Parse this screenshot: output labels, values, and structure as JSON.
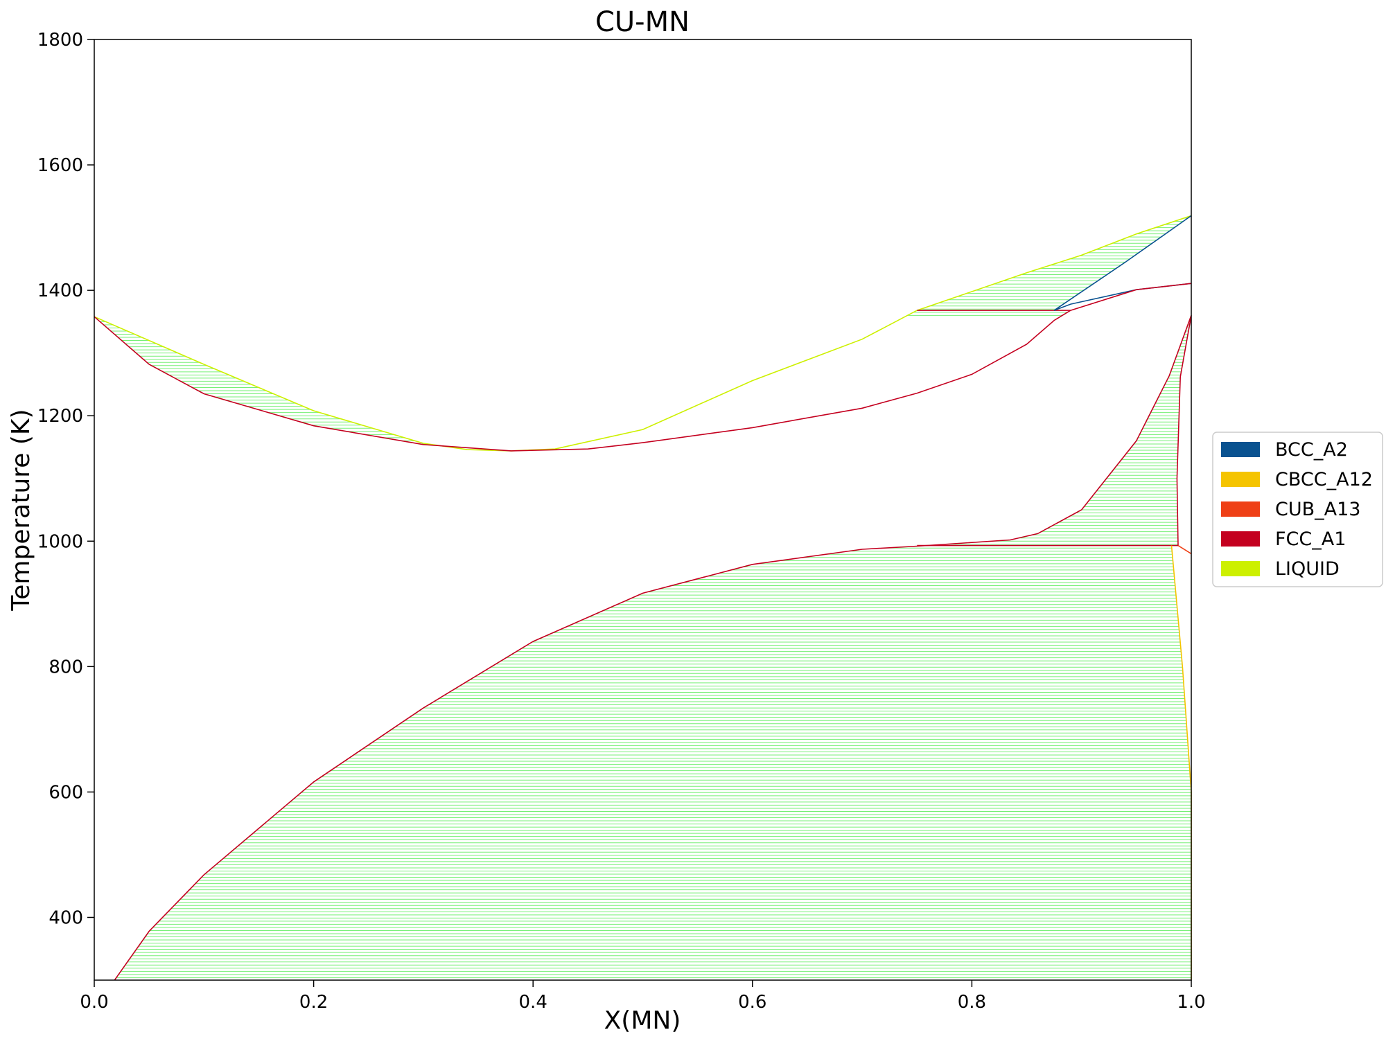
{
  "chart_data": {
    "type": "line",
    "title": "CU-MN",
    "xlabel": "X(MN)",
    "ylabel": "Temperature (K)",
    "xlim": [
      0,
      1
    ],
    "ylim": [
      300,
      1800
    ],
    "xticks": [
      "0.0",
      "0.2",
      "0.4",
      "0.6",
      "0.8",
      "1.0"
    ],
    "yticks": [
      "400",
      "600",
      "800",
      "1000",
      "1200",
      "1400",
      "1600",
      "1800"
    ],
    "grid": false,
    "legend_position": "right",
    "legend": [
      {
        "name": "BCC_A2",
        "color": "#0a5290"
      },
      {
        "name": "CBCC_A12",
        "color": "#f5c400"
      },
      {
        "name": "CUB_A13",
        "color": "#ef4016"
      },
      {
        "name": "FCC_A1",
        "color": "#c4001f"
      },
      {
        "name": "LIQUID",
        "color": "#cdf000"
      }
    ],
    "tieline_color": "#66ee66",
    "series": [
      {
        "name": "LIQUID",
        "color": "#cdf000",
        "points": [
          [
            0.0,
            1358
          ],
          [
            0.1,
            1282
          ],
          [
            0.2,
            1208
          ],
          [
            0.3,
            1156
          ],
          [
            0.34,
            1146
          ],
          [
            0.38,
            1144
          ],
          [
            0.42,
            1147
          ],
          [
            0.5,
            1178
          ],
          [
            0.6,
            1256
          ],
          [
            0.7,
            1322
          ],
          [
            0.75,
            1368
          ],
          [
            0.85,
            1428
          ],
          [
            0.9,
            1456
          ],
          [
            0.95,
            1490
          ],
          [
            1.0,
            1519
          ]
        ]
      },
      {
        "name": "FCC_A1",
        "color": "#c4001f",
        "points": [
          [
            0.0,
            1358
          ],
          [
            0.05,
            1282
          ],
          [
            0.1,
            1235
          ],
          [
            0.2,
            1184
          ],
          [
            0.3,
            1154
          ],
          [
            0.38,
            1144
          ],
          [
            0.45,
            1147
          ],
          [
            0.5,
            1157
          ],
          [
            0.6,
            1181
          ],
          [
            0.7,
            1212
          ],
          [
            0.75,
            1236
          ],
          [
            0.8,
            1266
          ],
          [
            0.85,
            1314
          ],
          [
            0.875,
            1352
          ],
          [
            0.89,
            1368
          ]
        ]
      },
      {
        "name": "FCC_A1",
        "color": "#c4001f",
        "points": [
          [
            0.75,
            1368
          ],
          [
            0.89,
            1368
          ]
        ]
      },
      {
        "name": "BCC_A2",
        "color": "#0a5290",
        "points": [
          [
            0.875,
            1368
          ],
          [
            0.94,
            1445
          ],
          [
            1.0,
            1519
          ]
        ]
      },
      {
        "name": "BCC_A2",
        "color": "#0a5290",
        "points": [
          [
            0.875,
            1368
          ],
          [
            0.89,
            1378
          ],
          [
            0.95,
            1401
          ],
          [
            1.0,
            1411
          ]
        ]
      },
      {
        "name": "FCC_A1",
        "color": "#c4001f",
        "points": [
          [
            0.89,
            1368
          ],
          [
            0.95,
            1401
          ],
          [
            1.0,
            1411
          ]
        ]
      },
      {
        "name": "FCC_A1",
        "color": "#c4001f",
        "points": [
          [
            0.0185,
            300
          ],
          [
            0.05,
            378
          ],
          [
            0.1,
            468
          ],
          [
            0.2,
            616
          ],
          [
            0.3,
            734
          ],
          [
            0.4,
            840
          ],
          [
            0.5,
            917
          ],
          [
            0.6,
            963
          ],
          [
            0.7,
            987
          ],
          [
            0.75,
            992
          ],
          [
            0.835,
            1002
          ],
          [
            0.86,
            1012
          ],
          [
            0.9,
            1050
          ],
          [
            0.95,
            1160
          ],
          [
            0.98,
            1264
          ],
          [
            1.0,
            1360
          ]
        ]
      },
      {
        "name": "FCC_A1",
        "color": "#c4001f",
        "points": [
          [
            1.0,
            1360
          ],
          [
            0.99,
            1262
          ],
          [
            0.987,
            1100
          ],
          [
            0.988,
            992
          ]
        ]
      },
      {
        "name": "FCC_A1",
        "color": "#c4001f",
        "points": [
          [
            0.75,
            993
          ],
          [
            0.988,
            993
          ]
        ]
      },
      {
        "name": "CUB_A13",
        "color": "#ef4016",
        "points": [
          [
            0.988,
            993
          ],
          [
            1.0,
            980
          ]
        ]
      },
      {
        "name": "CBCC_A12",
        "color": "#f5c400",
        "points": [
          [
            0.982,
            993
          ],
          [
            0.992,
            800
          ],
          [
            0.996,
            700
          ],
          [
            1.0,
            600
          ],
          [
            1.0,
            300
          ]
        ]
      }
    ]
  }
}
